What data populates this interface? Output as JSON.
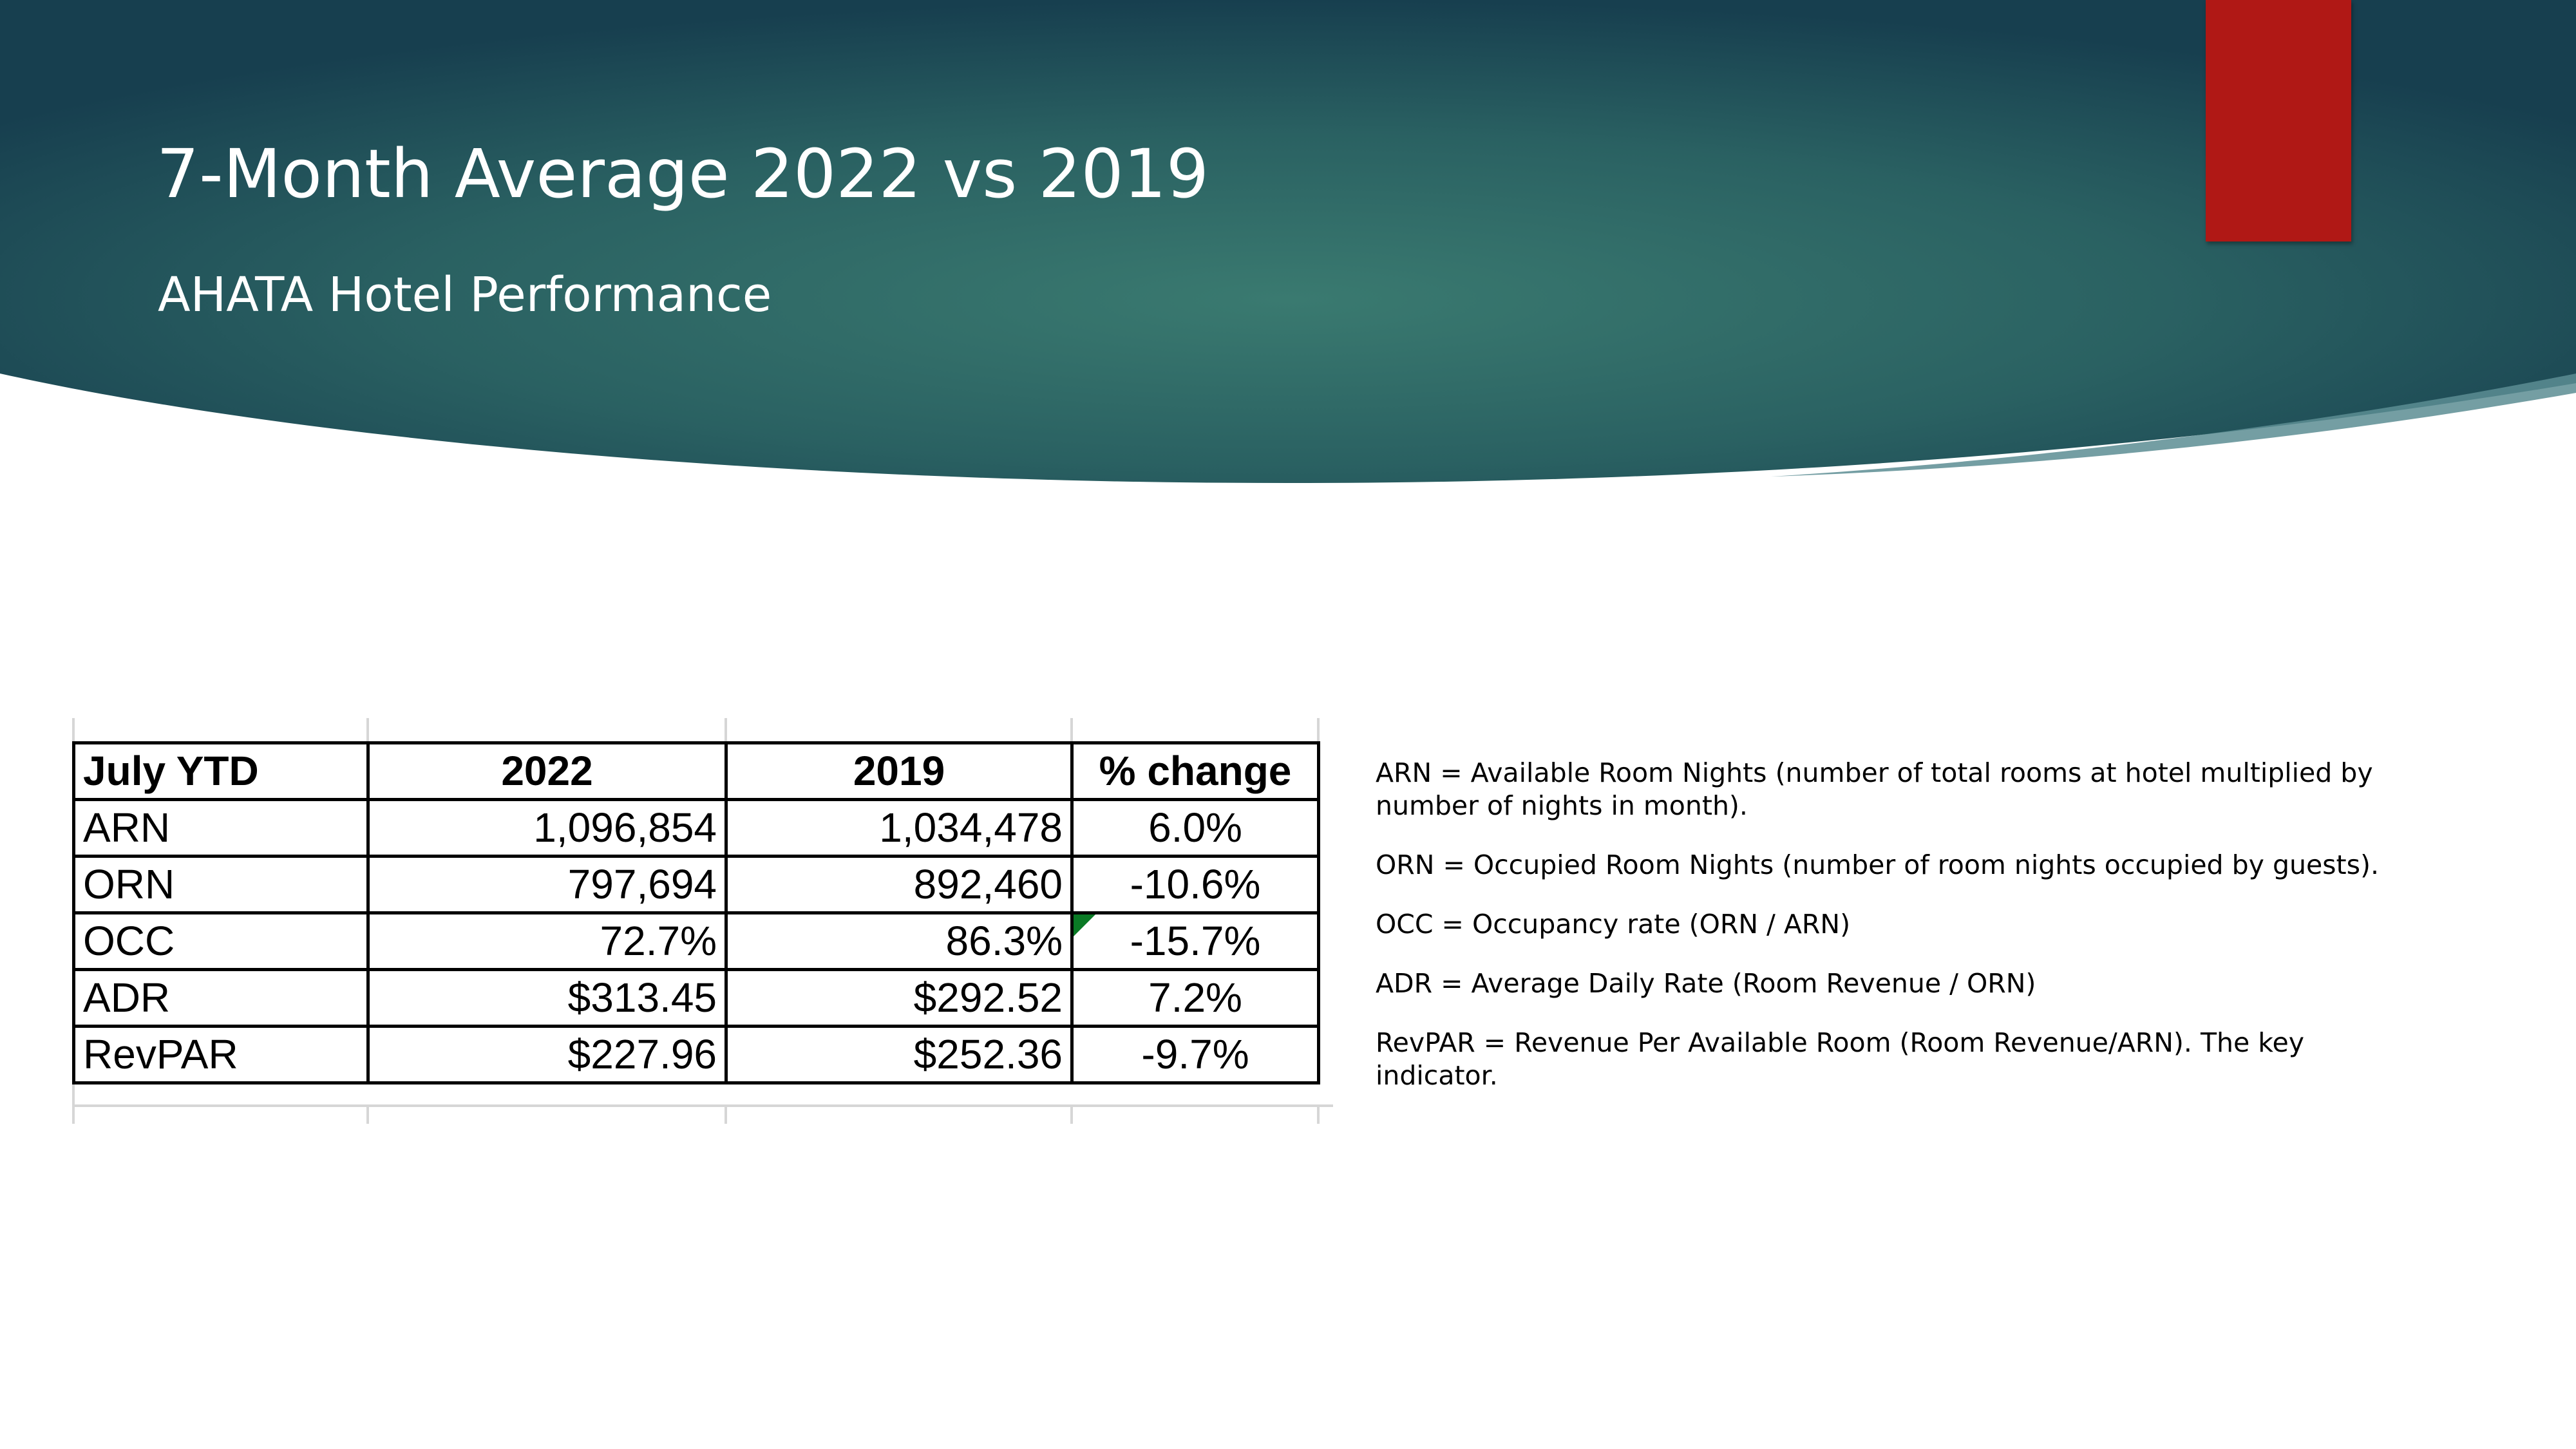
{
  "slide": {
    "title": "7-Month Average 2022 vs 2019",
    "subtitle": "AHATA Hotel Performance"
  },
  "colors": {
    "header_dark": "#173f4f",
    "header_light": "#3a7a70",
    "accent": "#b01815",
    "comment_marker": "#0a7a25"
  },
  "table": {
    "headers": [
      "July YTD",
      "2022",
      "2019",
      "% change"
    ],
    "rows": [
      {
        "metric": "ARN",
        "y2022": "1,096,854",
        "y2019": "1,034,478",
        "change": "6.0%"
      },
      {
        "metric": "ORN",
        "y2022": "797,694",
        "y2019": "892,460",
        "change": "-10.6%"
      },
      {
        "metric": "OCC",
        "y2022": "72.7%",
        "y2019": "86.3%",
        "change": "-15.7%"
      },
      {
        "metric": "ADR",
        "y2022": "$313.45",
        "y2019": "$292.52",
        "change": "7.2%"
      },
      {
        "metric": "RevPAR",
        "y2022": "$227.96",
        "y2019": "$252.36",
        "change": "-9.7%"
      }
    ]
  },
  "definitions": [
    "ARN = Available Room Nights (number of total rooms at hotel multiplied by number of nights in month).",
    "ORN = Occupied Room Nights (number of room nights occupied by guests).",
    "OCC = Occupancy rate (ORN / ARN)",
    "ADR = Average Daily Rate (Room Revenue / ORN)",
    "RevPAR = Revenue Per Available Room (Room Revenue/ARN). The key indicator."
  ]
}
